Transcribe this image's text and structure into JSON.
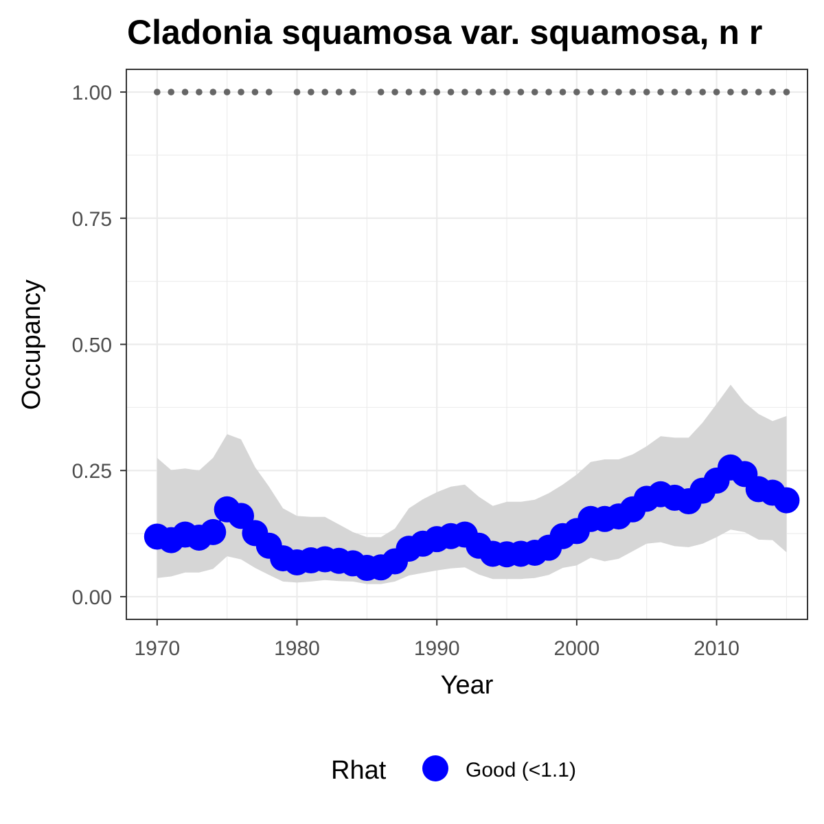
{
  "chart_data": {
    "type": "line",
    "title": "Cladonia squamosa var. squamosa, n r",
    "xlabel": "Year",
    "ylabel": "Occupancy",
    "xlim": [
      1967.8,
      2016.5
    ],
    "ylim": [
      -0.045,
      1.045
    ],
    "x_ticks": [
      1970,
      1980,
      1990,
      2000,
      2010
    ],
    "x_tick_labels": [
      "1970",
      "1980",
      "1990",
      "2000",
      "2010"
    ],
    "y_ticks": [
      0,
      0.25,
      0.5,
      0.75,
      1.0
    ],
    "y_tick_labels": [
      "0.00",
      "0.25",
      "0.50",
      "0.75",
      "1.00"
    ],
    "grid": true,
    "x": [
      1970,
      1971,
      1972,
      1973,
      1974,
      1975,
      1976,
      1977,
      1978,
      1979,
      1980,
      1981,
      1982,
      1983,
      1984,
      1985,
      1986,
      1987,
      1988,
      1989,
      1990,
      1991,
      1992,
      1993,
      1994,
      1995,
      1996,
      1997,
      1998,
      1999,
      2000,
      2001,
      2002,
      2003,
      2004,
      2005,
      2006,
      2007,
      2008,
      2009,
      2010,
      2011,
      2012,
      2013,
      2014,
      2015
    ],
    "series": [
      {
        "name": "Good (<1.1)",
        "color": "#0000ff",
        "values": [
          0.119,
          0.112,
          0.123,
          0.117,
          0.128,
          0.173,
          0.16,
          0.126,
          0.101,
          0.076,
          0.068,
          0.072,
          0.074,
          0.071,
          0.066,
          0.057,
          0.058,
          0.07,
          0.095,
          0.105,
          0.114,
          0.12,
          0.123,
          0.101,
          0.085,
          0.084,
          0.085,
          0.087,
          0.097,
          0.12,
          0.13,
          0.154,
          0.154,
          0.159,
          0.173,
          0.194,
          0.203,
          0.196,
          0.189,
          0.21,
          0.23,
          0.256,
          0.243,
          0.213,
          0.206,
          0.191
        ],
        "lower": [
          0.037,
          0.04,
          0.048,
          0.048,
          0.055,
          0.08,
          0.074,
          0.057,
          0.043,
          0.03,
          0.028,
          0.03,
          0.033,
          0.031,
          0.03,
          0.025,
          0.025,
          0.03,
          0.042,
          0.047,
          0.052,
          0.056,
          0.058,
          0.044,
          0.035,
          0.035,
          0.035,
          0.037,
          0.043,
          0.057,
          0.062,
          0.077,
          0.07,
          0.075,
          0.09,
          0.105,
          0.108,
          0.1,
          0.098,
          0.105,
          0.118,
          0.133,
          0.128,
          0.113,
          0.112,
          0.088
        ],
        "upper": [
          0.275,
          0.251,
          0.254,
          0.25,
          0.275,
          0.322,
          0.312,
          0.257,
          0.218,
          0.175,
          0.16,
          0.158,
          0.158,
          0.143,
          0.128,
          0.118,
          0.118,
          0.135,
          0.175,
          0.193,
          0.207,
          0.218,
          0.222,
          0.198,
          0.18,
          0.188,
          0.188,
          0.192,
          0.205,
          0.222,
          0.242,
          0.267,
          0.272,
          0.272,
          0.282,
          0.298,
          0.318,
          0.315,
          0.315,
          0.345,
          0.382,
          0.42,
          0.385,
          0.362,
          0.348,
          0.358
        ]
      }
    ],
    "record_years": [
      1970,
      1971,
      1972,
      1973,
      1974,
      1975,
      1976,
      1977,
      1978,
      1980,
      1981,
      1982,
      1983,
      1984,
      1986,
      1987,
      1988,
      1989,
      1990,
      1991,
      1992,
      1993,
      1994,
      1995,
      1996,
      1997,
      1998,
      1999,
      2000,
      2001,
      2002,
      2003,
      2004,
      2005,
      2006,
      2007,
      2008,
      2009,
      2010,
      2011,
      2012,
      2013,
      2014,
      2015
    ],
    "record_value": 1.0,
    "record_color": "#666666",
    "band_color": "#d6d6d6",
    "legend": {
      "title": "Rhat",
      "position": "bottom",
      "items": [
        {
          "label": "Good (<1.1)",
          "color": "#0000ff"
        }
      ]
    }
  }
}
